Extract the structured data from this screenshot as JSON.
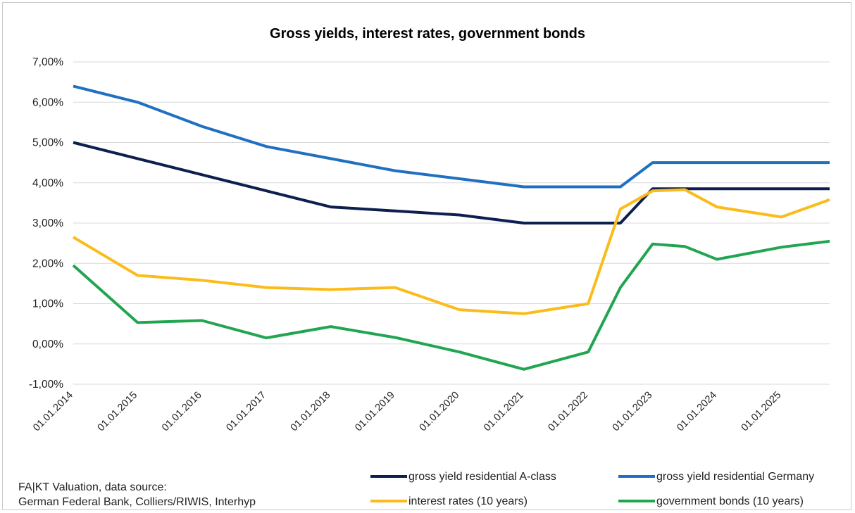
{
  "chart_data": {
    "type": "line",
    "title": "Gross yields, interest rates, government bonds",
    "xlabel": "",
    "ylabel": "",
    "ylim": [
      -0.01,
      0.07
    ],
    "yticks": [
      "7,00%",
      "6,00%",
      "5,00%",
      "4,00%",
      "3,00%",
      "2,00%",
      "1,00%",
      "0,00%",
      "-1,00%"
    ],
    "ytick_values": [
      0.07,
      0.06,
      0.05,
      0.04,
      0.03,
      0.02,
      0.01,
      0.0,
      -0.01
    ],
    "xlim": [
      2014.0,
      2025.75
    ],
    "xticks": [
      "01.01.2014",
      "01.01.2015",
      "01.01.2016",
      "01.01.2017",
      "01.01.2018",
      "01.01.2019",
      "01.01.2020",
      "01.01.2021",
      "01.01.2022",
      "01.01.2023",
      "01.01.2024",
      "01.01.2025"
    ],
    "xtick_values": [
      2014,
      2015,
      2016,
      2017,
      2018,
      2019,
      2020,
      2021,
      2022,
      2023,
      2024,
      2025
    ],
    "grid": "horizontal",
    "legend_position": "bottom",
    "series": [
      {
        "name": "gross yield residential A-class",
        "color": "#0d1f4f",
        "points": [
          [
            2014.0,
            0.05
          ],
          [
            2015.0,
            0.046
          ],
          [
            2016.0,
            0.042
          ],
          [
            2017.0,
            0.038
          ],
          [
            2018.0,
            0.034
          ],
          [
            2019.0,
            0.033
          ],
          [
            2020.0,
            0.032
          ],
          [
            2021.0,
            0.03
          ],
          [
            2022.0,
            0.03
          ],
          [
            2022.5,
            0.03
          ],
          [
            2023.0,
            0.0385
          ],
          [
            2024.0,
            0.0385
          ],
          [
            2025.0,
            0.0385
          ],
          [
            2025.75,
            0.0385
          ]
        ]
      },
      {
        "name": "gross yield residential Germany",
        "color": "#1f70c1",
        "points": [
          [
            2014.0,
            0.064
          ],
          [
            2015.0,
            0.06
          ],
          [
            2016.0,
            0.054
          ],
          [
            2017.0,
            0.049
          ],
          [
            2018.0,
            0.046
          ],
          [
            2019.0,
            0.043
          ],
          [
            2020.0,
            0.041
          ],
          [
            2021.0,
            0.039
          ],
          [
            2022.0,
            0.039
          ],
          [
            2022.5,
            0.039
          ],
          [
            2023.0,
            0.045
          ],
          [
            2024.0,
            0.045
          ],
          [
            2025.0,
            0.045
          ],
          [
            2025.75,
            0.045
          ]
        ]
      },
      {
        "name": "interest rates (10 years)",
        "color": "#fbbc1b",
        "points": [
          [
            2014.0,
            0.0265
          ],
          [
            2015.0,
            0.017
          ],
          [
            2016.0,
            0.0158
          ],
          [
            2017.0,
            0.014
          ],
          [
            2018.0,
            0.0135
          ],
          [
            2019.0,
            0.014
          ],
          [
            2020.0,
            0.0085
          ],
          [
            2021.0,
            0.0075
          ],
          [
            2022.0,
            0.01
          ],
          [
            2022.5,
            0.0335
          ],
          [
            2023.0,
            0.038
          ],
          [
            2023.5,
            0.0383
          ],
          [
            2024.0,
            0.034
          ],
          [
            2025.0,
            0.0315
          ],
          [
            2025.75,
            0.0358
          ]
        ]
      },
      {
        "name": "government bonds (10 years)",
        "color": "#21a551",
        "points": [
          [
            2014.0,
            0.0195
          ],
          [
            2015.0,
            0.0053
          ],
          [
            2016.0,
            0.0058
          ],
          [
            2017.0,
            0.0015
          ],
          [
            2018.0,
            0.0043
          ],
          [
            2019.0,
            0.0016
          ],
          [
            2020.0,
            -0.002
          ],
          [
            2021.0,
            -0.0063
          ],
          [
            2022.0,
            -0.002
          ],
          [
            2022.5,
            0.014
          ],
          [
            2023.0,
            0.0248
          ],
          [
            2023.5,
            0.0242
          ],
          [
            2024.0,
            0.021
          ],
          [
            2025.0,
            0.024
          ],
          [
            2025.75,
            0.0255
          ]
        ]
      }
    ]
  },
  "source_note": {
    "line1": "FA|KT Valuation, data source:",
    "line2": "German Federal Bank, Colliers/RIWIS, Interhyp"
  }
}
